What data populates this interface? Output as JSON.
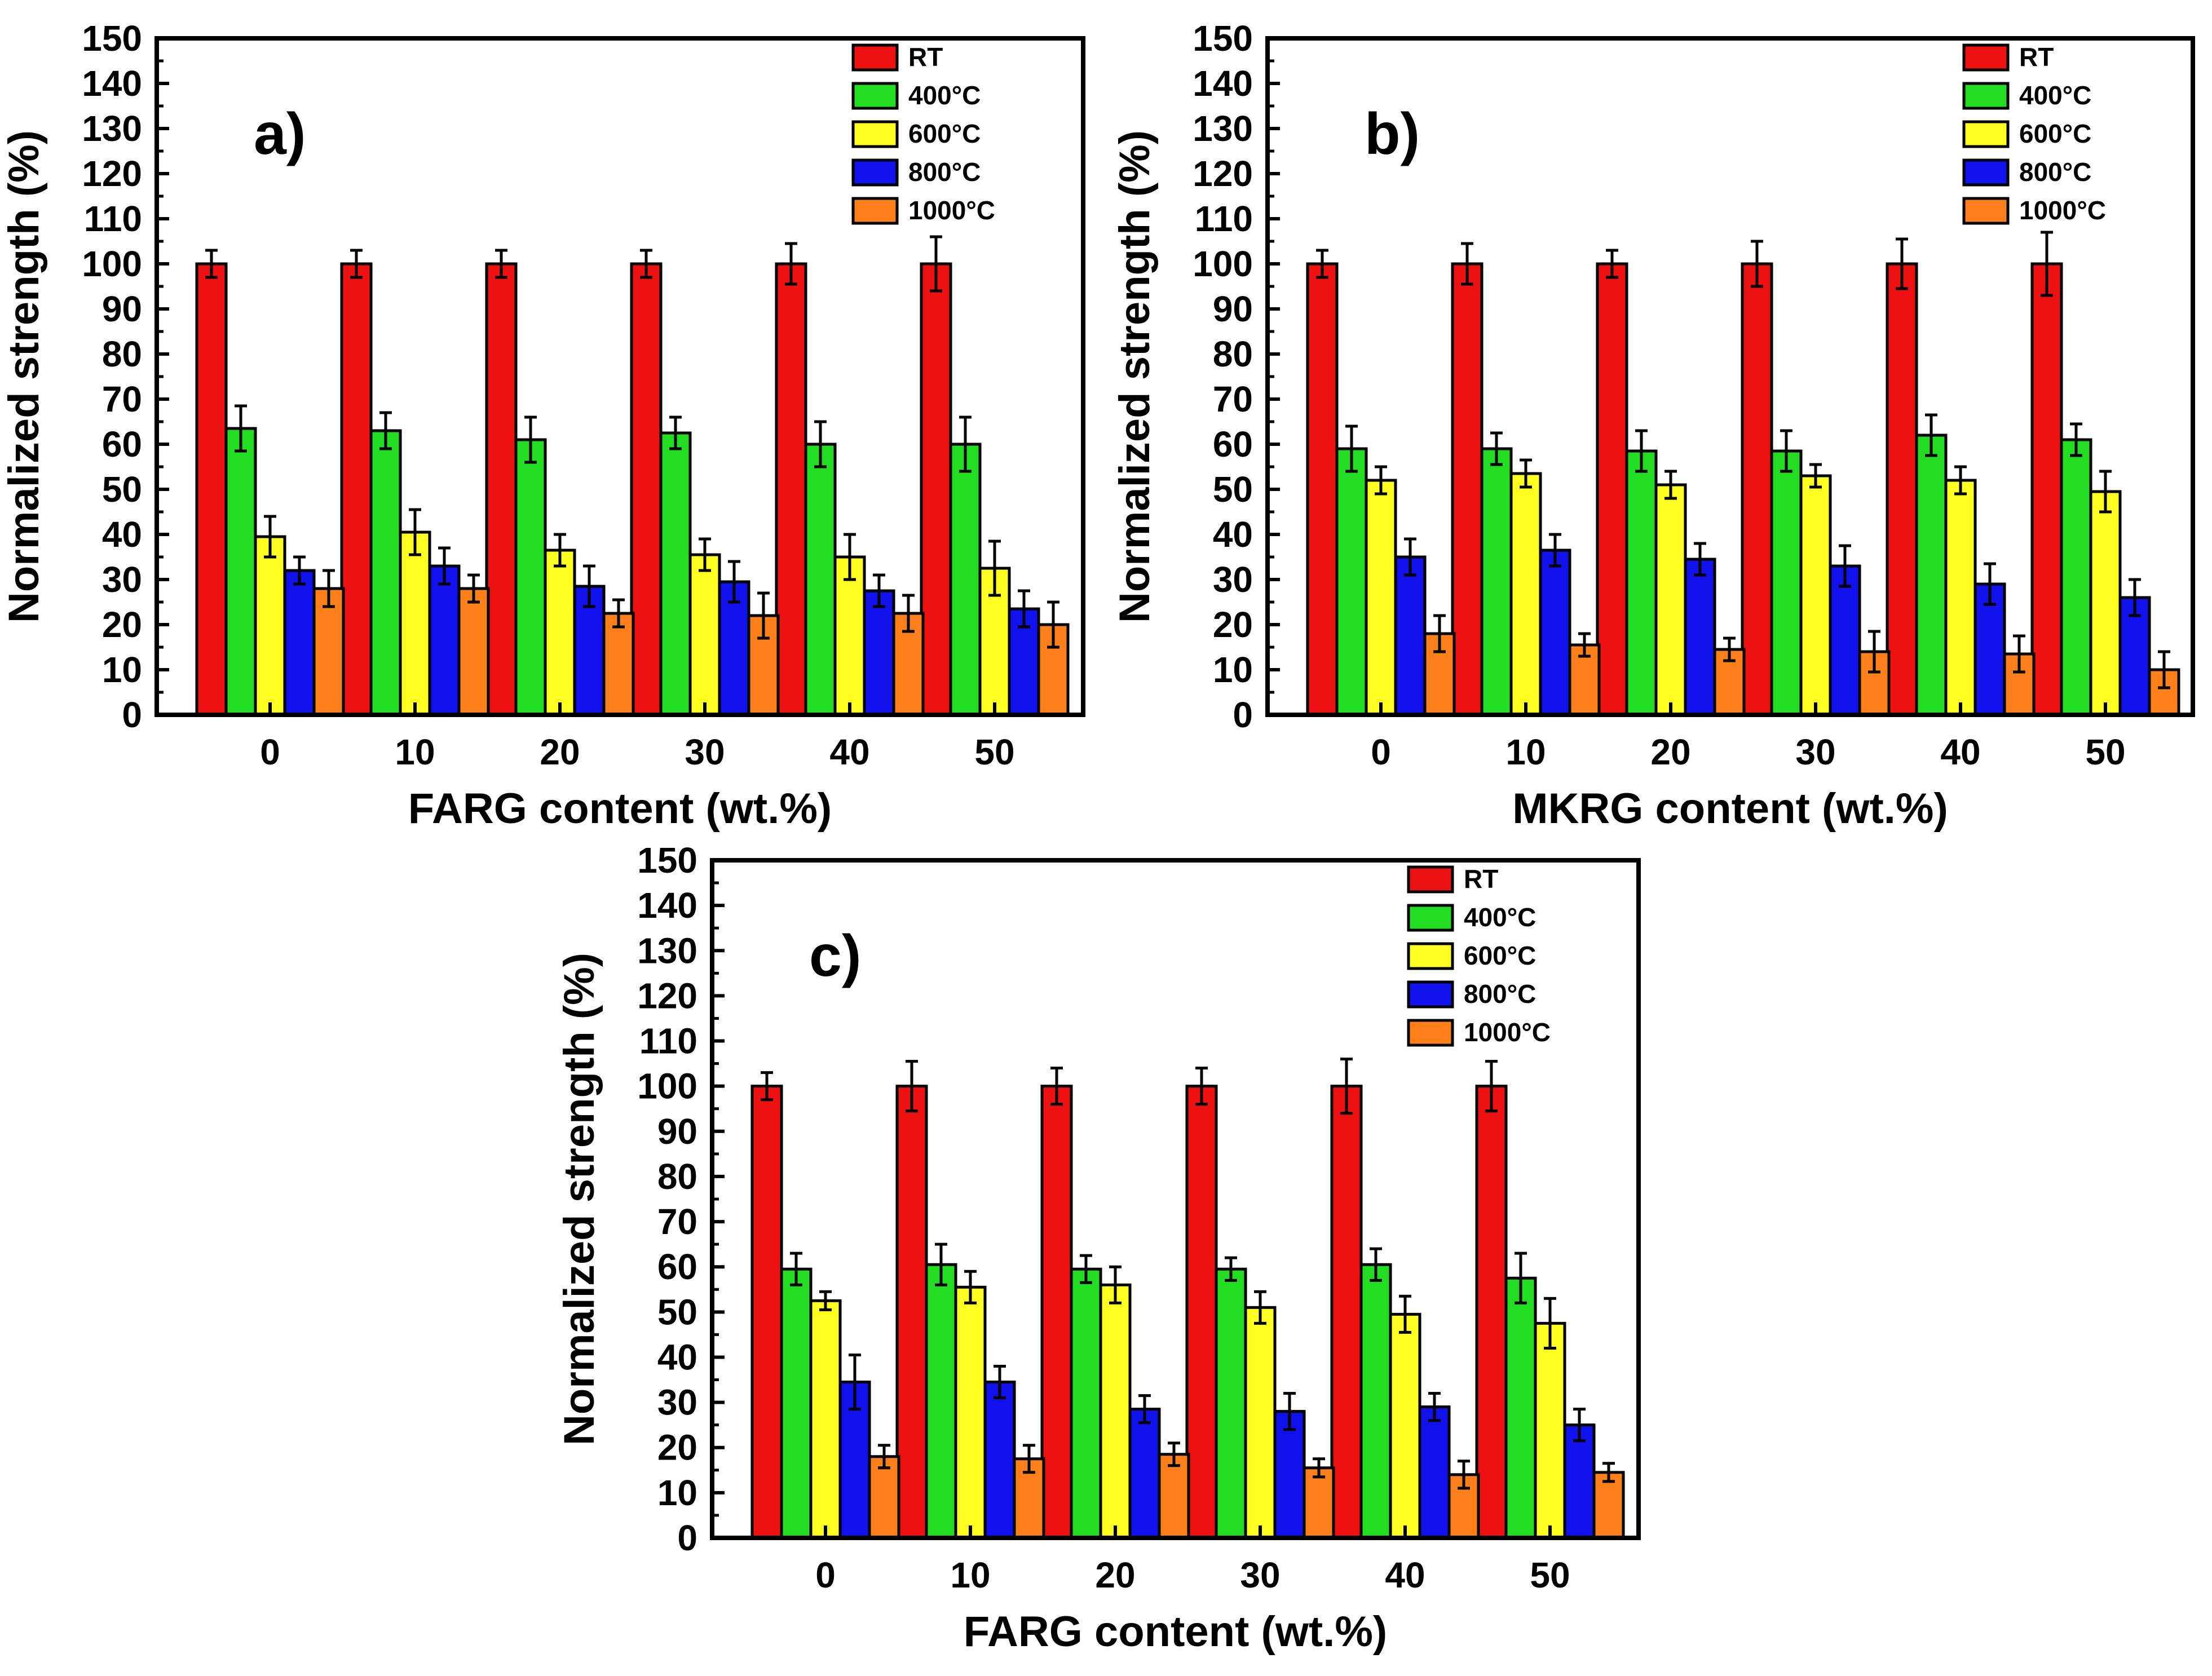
{
  "colors": {
    "RT": "#ee1111",
    "400C": "#22dd22",
    "600C": "#ffff22",
    "800C": "#1111ee",
    "1000C": "#ff7f1a",
    "axis": "#000000"
  },
  "chart_data": [
    {
      "type": "bar",
      "panel_label": "a)",
      "xlabel": "FARG content (wt.%)",
      "ylabel": "Normalized strength (%)",
      "ylim": [
        0,
        150
      ],
      "yticks": [
        "0",
        "10",
        "20",
        "30",
        "40",
        "50",
        "60",
        "70",
        "80",
        "90",
        "100",
        "110",
        "120",
        "130",
        "140",
        "150"
      ],
      "categories": [
        "0",
        "10",
        "20",
        "30",
        "40",
        "50"
      ],
      "legend_position": "top-right",
      "series": [
        {
          "name": "RT",
          "color_key": "RT",
          "values": [
            100,
            100,
            100,
            100,
            100,
            100
          ],
          "errors": [
            3,
            3,
            3,
            3,
            4.5,
            6
          ]
        },
        {
          "name": "400°C",
          "color_key": "400C",
          "values": [
            63.5,
            63,
            61,
            62.5,
            60,
            60
          ],
          "errors": [
            5,
            4,
            5,
            3.5,
            5,
            6
          ]
        },
        {
          "name": "600°C",
          "color_key": "600C",
          "values": [
            39.5,
            40.5,
            36.5,
            35.5,
            35,
            32.5
          ],
          "errors": [
            4.5,
            5,
            3.5,
            3.5,
            5,
            6
          ]
        },
        {
          "name": "800°C",
          "color_key": "800C",
          "values": [
            32,
            33,
            28.5,
            29.5,
            27.5,
            23.5
          ],
          "errors": [
            3,
            4,
            4.5,
            4.5,
            3.5,
            4
          ]
        },
        {
          "name": "1000°C",
          "color_key": "1000C",
          "values": [
            28,
            28,
            22.5,
            22,
            22.5,
            20
          ],
          "errors": [
            4,
            3,
            3,
            5,
            4,
            5
          ]
        }
      ]
    },
    {
      "type": "bar",
      "panel_label": "b)",
      "xlabel": "MKRG content (wt.%)",
      "ylabel": "Normalized strength (%)",
      "ylim": [
        0,
        150
      ],
      "yticks": [
        "0",
        "10",
        "20",
        "30",
        "40",
        "50",
        "60",
        "70",
        "80",
        "90",
        "100",
        "110",
        "120",
        "130",
        "140",
        "150"
      ],
      "categories": [
        "0",
        "10",
        "20",
        "30",
        "40",
        "50"
      ],
      "legend_position": "top-right",
      "series": [
        {
          "name": "RT",
          "color_key": "RT",
          "values": [
            100,
            100,
            100,
            100,
            100,
            100
          ],
          "errors": [
            3,
            4.5,
            3,
            5,
            5.5,
            7
          ]
        },
        {
          "name": "400°C",
          "color_key": "400C",
          "values": [
            59,
            59,
            58.5,
            58.5,
            62,
            61
          ],
          "errors": [
            5,
            3.5,
            4.5,
            4.5,
            4.5,
            3.5
          ]
        },
        {
          "name": "600°C",
          "color_key": "600C",
          "values": [
            52,
            53.5,
            51,
            53,
            52,
            49.5
          ],
          "errors": [
            3,
            3,
            3,
            2.5,
            3,
            4.5
          ]
        },
        {
          "name": "800°C",
          "color_key": "800C",
          "values": [
            35,
            36.5,
            34.5,
            33,
            29,
            26
          ],
          "errors": [
            4,
            3.5,
            3.5,
            4.5,
            4.5,
            4
          ]
        },
        {
          "name": "1000°C",
          "color_key": "1000C",
          "values": [
            18,
            15.5,
            14.5,
            14,
            13.5,
            10
          ],
          "errors": [
            4,
            2.5,
            2.5,
            4.5,
            4,
            4
          ]
        }
      ]
    },
    {
      "type": "bar",
      "panel_label": "c)",
      "xlabel": "FARG content (wt.%)",
      "ylabel": "Normalized strength (%)",
      "ylim": [
        0,
        150
      ],
      "yticks": [
        "0",
        "10",
        "20",
        "30",
        "40",
        "50",
        "60",
        "70",
        "80",
        "90",
        "100",
        "110",
        "120",
        "130",
        "140",
        "150"
      ],
      "categories": [
        "0",
        "10",
        "20",
        "30",
        "40",
        "50"
      ],
      "legend_position": "top-right",
      "series": [
        {
          "name": "RT",
          "color_key": "RT",
          "values": [
            100,
            100,
            100,
            100,
            100,
            100
          ],
          "errors": [
            3,
            5.5,
            4,
            4,
            6,
            5.5
          ]
        },
        {
          "name": "400°C",
          "color_key": "400C",
          "values": [
            59.5,
            60.5,
            59.5,
            59.5,
            60.5,
            57.5
          ],
          "errors": [
            3.5,
            4.5,
            3,
            2.5,
            3.5,
            5.5
          ]
        },
        {
          "name": "600°C",
          "color_key": "600C",
          "values": [
            52.5,
            55.5,
            56,
            51,
            49.5,
            47.5
          ],
          "errors": [
            2,
            3.5,
            4,
            3.5,
            4,
            5.5
          ]
        },
        {
          "name": "800°C",
          "color_key": "800C",
          "values": [
            34.5,
            34.5,
            28.5,
            28,
            29,
            25
          ],
          "errors": [
            6,
            3.5,
            3,
            4,
            3,
            3.5
          ]
        },
        {
          "name": "1000°C",
          "color_key": "1000C",
          "values": [
            18,
            17.5,
            18.5,
            15.5,
            14,
            14.5
          ],
          "errors": [
            2.5,
            3,
            2.5,
            2,
            3,
            2
          ]
        }
      ]
    }
  ]
}
